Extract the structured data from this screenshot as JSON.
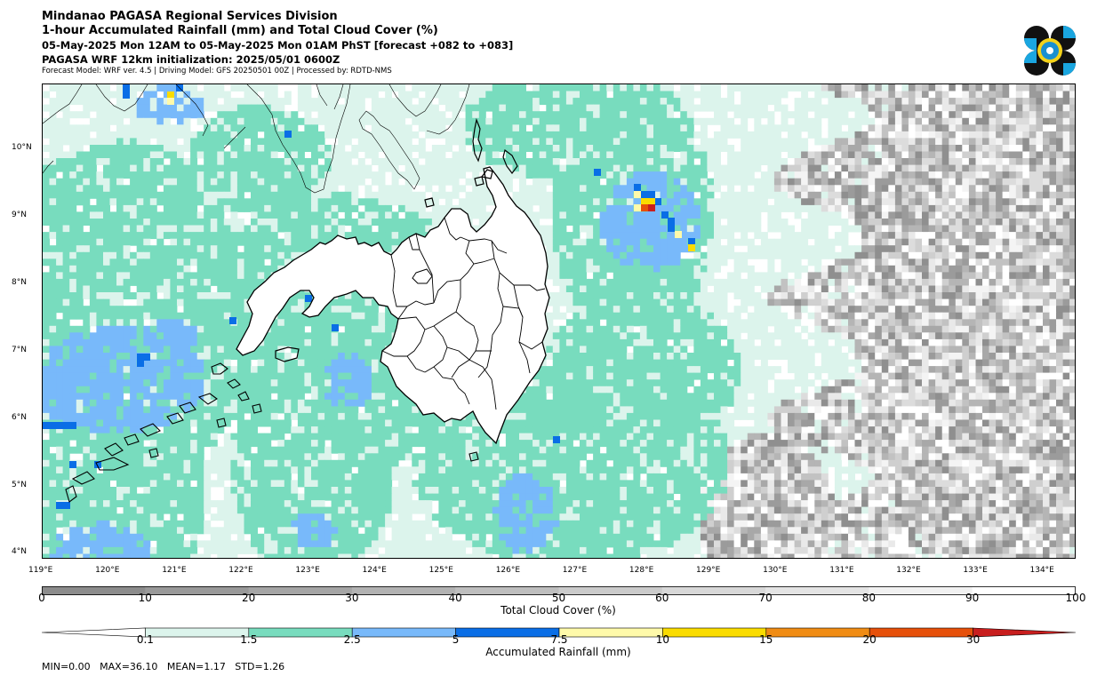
{
  "header": {
    "line1": "Mindanao PAGASA Regional Services Division",
    "line2": "1-hour Accumulated Rainfall (mm) and Total Cloud Cover (%)",
    "line3": "05-May-2025 Mon 12AM to 05-May-2025 Mon 01AM PhST [forecast +082 to +083]",
    "line4": "PAGASA WRF 12km initialization: 2025/05/01 0600Z",
    "line5": "Forecast Model: WRF ver. 4.5 | Driving Model: GFS 20250501 00Z | Processed by: RDTD-NMS"
  },
  "map": {
    "lon_range": [
      119,
      134.5
    ],
    "lat_range": [
      3.9,
      10.95
    ],
    "lon_ticks": [
      "119°E",
      "120°E",
      "121°E",
      "122°E",
      "123°E",
      "124°E",
      "125°E",
      "126°E",
      "127°E",
      "128°E",
      "129°E",
      "130°E",
      "131°E",
      "132°E",
      "133°E",
      "134°E"
    ],
    "lat_ticks": [
      "10°N",
      "9°N",
      "8°N",
      "7°N",
      "6°N",
      "5°N",
      "4°N"
    ],
    "colors": {
      "rain_0_1": "#dcf4ec",
      "rain_1_5": "#78dcbe",
      "rain_2_5": "#78b9fa",
      "rain_5": "#0a6ee6",
      "rain_7_5": "#fffaaa",
      "rain_10": "#fadc00",
      "rain_15": "#f08c14",
      "rain_20": "#e6500a",
      "rain_30": "#c81e1e",
      "cloud_0": "#8c8c8c",
      "cloud_100": "#ffffff"
    }
  },
  "cloud_bar": {
    "title": "Total Cloud Cover (%)",
    "labels": [
      "0",
      "10",
      "20",
      "30",
      "40",
      "50",
      "60",
      "70",
      "80",
      "90",
      "100"
    ]
  },
  "rain_bar": {
    "title": "Accumulated Rainfall (mm)",
    "labels": [
      "0.1",
      "1.5",
      "2.5",
      "5",
      "7.5",
      "10",
      "15",
      "20",
      "30"
    ]
  },
  "stats": "MIN=0.00   MAX=36.10   MEAN=1.17   STD=1.26"
}
